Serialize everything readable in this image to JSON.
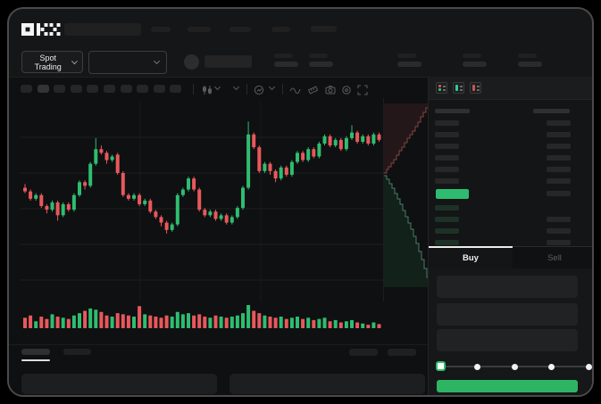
{
  "brand": "OKX",
  "colors": {
    "up_green": "#2ebd70",
    "down_red": "#e8585c",
    "accent_button_green": "#2eb564",
    "depth_ask_fill": "rgba(224,91,97,0.10)",
    "depth_ask_line": "rgba(216,110,112,0.55)",
    "depth_bid_fill": "rgba(46,189,112,0.10)",
    "depth_bid_line": "rgba(120,205,175,0.55)",
    "grid": "#1e1f20"
  },
  "navbar": {
    "nav_item_count": 4
  },
  "subheader": {
    "market_selector_label": "Spot Trading",
    "stat_group_positions": [
      297,
      336,
      435,
      508,
      570
    ]
  },
  "chart_toolbar": {
    "interval_pill_count": 10,
    "active_pill_index": 1
  },
  "order_book": {
    "view_toggles": [
      "book-split-view",
      "book-bids-view",
      "book-asks-view"
    ],
    "ask_row_count": 6,
    "bid_row_count": 4,
    "last_price_direction": "up"
  },
  "trade_panel": {
    "tabs": {
      "buy_label": "Buy",
      "sell_label": "Sell",
      "active": "Buy"
    },
    "input_row_count": 3,
    "slider": {
      "value_percent": 0,
      "stops_percent": [
        0,
        25,
        50,
        75,
        100
      ]
    },
    "submit_button_label": ""
  },
  "bottom_section": {
    "tab_count": 2,
    "right_button_count": 2,
    "panel_count": 2
  },
  "chart_data": [
    {
      "type": "candlestick",
      "title": "",
      "note": "no axis labels rendered; prices are relative units 0-100 estimated from pixels",
      "x": "66 sequential bars",
      "ylim": [
        30,
        100
      ],
      "grid": "horizontal + faint vertical",
      "up_color": "#2ebd70",
      "down_color": "#e8585c",
      "candles_ohlc": [
        [
          59,
          61,
          56,
          57
        ],
        [
          57,
          58,
          52,
          53
        ],
        [
          53,
          56,
          52,
          55
        ],
        [
          55,
          56,
          48,
          49
        ],
        [
          49,
          50,
          45,
          47
        ],
        [
          47,
          52,
          46,
          51
        ],
        [
          51,
          52,
          41,
          44
        ],
        [
          44,
          51,
          43,
          50
        ],
        [
          50,
          51,
          46,
          47
        ],
        [
          47,
          56,
          46,
          55
        ],
        [
          55,
          63,
          54,
          62
        ],
        [
          62,
          63,
          58,
          60
        ],
        [
          60,
          73,
          59,
          72
        ],
        [
          72,
          86,
          71,
          80
        ],
        [
          80,
          82,
          77,
          78
        ],
        [
          78,
          79,
          72,
          74
        ],
        [
          74,
          77,
          73,
          76
        ],
        [
          77,
          78,
          66,
          67
        ],
        [
          67,
          68,
          54,
          55
        ],
        [
          55,
          56,
          52,
          53
        ],
        [
          53,
          56,
          52,
          55
        ],
        [
          55,
          56,
          49,
          50
        ],
        [
          50,
          53,
          49,
          52
        ],
        [
          52,
          53,
          45,
          46
        ],
        [
          46,
          47,
          42,
          43
        ],
        [
          43,
          44,
          38,
          40
        ],
        [
          40,
          41,
          34,
          36
        ],
        [
          36,
          40,
          35,
          39
        ],
        [
          39,
          56,
          38,
          55
        ],
        [
          55,
          59,
          54,
          58
        ],
        [
          58,
          65,
          57,
          64
        ],
        [
          64,
          65,
          57,
          58
        ],
        [
          58,
          59,
          46,
          47
        ],
        [
          47,
          48,
          43,
          44
        ],
        [
          44,
          47,
          43,
          46
        ],
        [
          46,
          47,
          41,
          42
        ],
        [
          42,
          45,
          41,
          44
        ],
        [
          44,
          45,
          39,
          40
        ],
        [
          40,
          44,
          39,
          43
        ],
        [
          43,
          49,
          42,
          48
        ],
        [
          48,
          60,
          47,
          59
        ],
        [
          59,
          95,
          58,
          88
        ],
        [
          88,
          89,
          80,
          81
        ],
        [
          81,
          82,
          67,
          68
        ],
        [
          68,
          73,
          67,
          72
        ],
        [
          72,
          73,
          66,
          68
        ],
        [
          68,
          69,
          62,
          64
        ],
        [
          64,
          71,
          63,
          70
        ],
        [
          70,
          71,
          65,
          66
        ],
        [
          66,
          74,
          65,
          73
        ],
        [
          73,
          79,
          72,
          78
        ],
        [
          78,
          79,
          73,
          74
        ],
        [
          74,
          81,
          73,
          80
        ],
        [
          80,
          81,
          75,
          76
        ],
        [
          76,
          84,
          75,
          83
        ],
        [
          83,
          88,
          82,
          87
        ],
        [
          87,
          88,
          81,
          82
        ],
        [
          82,
          86,
          81,
          85
        ],
        [
          85,
          86,
          79,
          80
        ],
        [
          80,
          87,
          79,
          86
        ],
        [
          86,
          93,
          85,
          89
        ],
        [
          89,
          90,
          83,
          84
        ],
        [
          84,
          88,
          83,
          87
        ],
        [
          87,
          88,
          82,
          83
        ],
        [
          83,
          89,
          82,
          88
        ],
        [
          88,
          89,
          84,
          85
        ]
      ]
    },
    {
      "type": "bar",
      "title": "volume",
      "note": "heights as % of max volume bar; color follows candle direction",
      "values": [
        45,
        55,
        30,
        50,
        40,
        60,
        50,
        45,
        40,
        55,
        65,
        75,
        85,
        80,
        70,
        55,
        50,
        65,
        60,
        55,
        50,
        95,
        60,
        55,
        50,
        45,
        55,
        50,
        70,
        60,
        65,
        55,
        60,
        50,
        45,
        55,
        50,
        45,
        50,
        55,
        65,
        100,
        75,
        65,
        55,
        50,
        45,
        50,
        40,
        45,
        50,
        40,
        45,
        35,
        40,
        45,
        30,
        35,
        25,
        30,
        35,
        25,
        20,
        15,
        25,
        18
      ]
    },
    {
      "type": "area",
      "title": "depth (vertical, asks above mid / bids below mid)",
      "note": "points in local px of 50x224 strip, x=cumulative size, y=price axis",
      "asks_curve": [
        [
          0,
          84
        ],
        [
          3,
          80
        ],
        [
          5,
          77
        ],
        [
          8,
          73
        ],
        [
          11,
          69
        ],
        [
          14,
          64
        ],
        [
          17,
          59
        ],
        [
          20,
          55
        ],
        [
          23,
          50
        ],
        [
          26,
          45
        ],
        [
          29,
          41
        ],
        [
          32,
          37
        ],
        [
          35,
          32
        ],
        [
          38,
          27
        ],
        [
          41,
          21
        ],
        [
          44,
          16
        ],
        [
          47,
          11
        ],
        [
          50,
          7
        ]
      ],
      "bids_curve": [
        [
          0,
          87
        ],
        [
          3,
          91
        ],
        [
          6,
          96
        ],
        [
          9,
          101
        ],
        [
          12,
          107
        ],
        [
          15,
          113
        ],
        [
          18,
          119
        ],
        [
          21,
          126
        ],
        [
          24,
          133
        ],
        [
          27,
          140
        ],
        [
          30,
          147
        ],
        [
          33,
          155
        ],
        [
          36,
          163
        ],
        [
          39,
          172
        ],
        [
          42,
          181
        ],
        [
          45,
          191
        ],
        [
          48,
          201
        ],
        [
          50,
          210
        ]
      ]
    }
  ]
}
